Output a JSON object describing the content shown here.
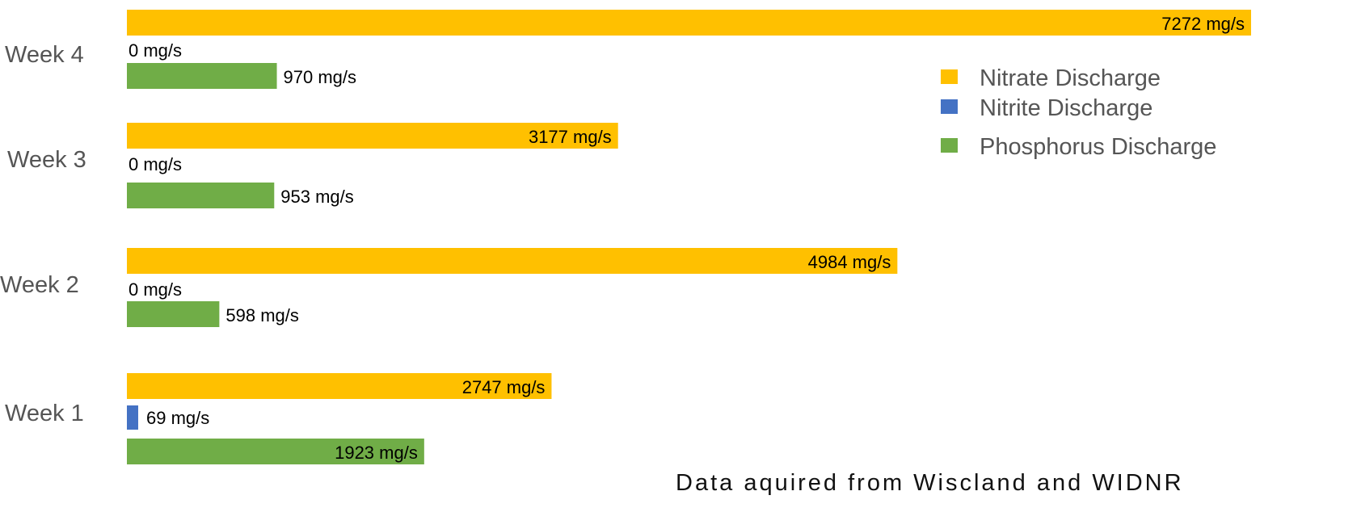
{
  "chart_data": {
    "type": "bar",
    "orientation": "horizontal",
    "categories": [
      "Week 1",
      "Week 2",
      "Week 3",
      "Week 4"
    ],
    "series": [
      {
        "name": "Nitrate Discharge",
        "color": "#FFC000",
        "values": [
          2747,
          4984,
          3177,
          7272
        ],
        "labels": [
          "2747 mg/s",
          "4984 mg/s",
          "3177 mg/s",
          "7272 mg/s"
        ]
      },
      {
        "name": "Nitrite Discharge",
        "color": "#4472C4",
        "values": [
          69,
          0,
          0,
          0
        ],
        "labels": [
          "69 mg/s",
          "0 mg/s",
          "0 mg/s",
          "0 mg/s"
        ]
      },
      {
        "name": "Phosphorus Discharge",
        "color": "#70AD47",
        "values": [
          1923,
          598,
          953,
          970
        ],
        "labels": [
          "1923 mg/s",
          "598 mg/s",
          "953 mg/s",
          "970 mg/s"
        ]
      }
    ],
    "unit": "mg/s",
    "xlim": [
      0,
      7272
    ],
    "grid": false,
    "legend_position": "top-right"
  },
  "footnote": "Data aquired from Wiscland and WIDNR"
}
